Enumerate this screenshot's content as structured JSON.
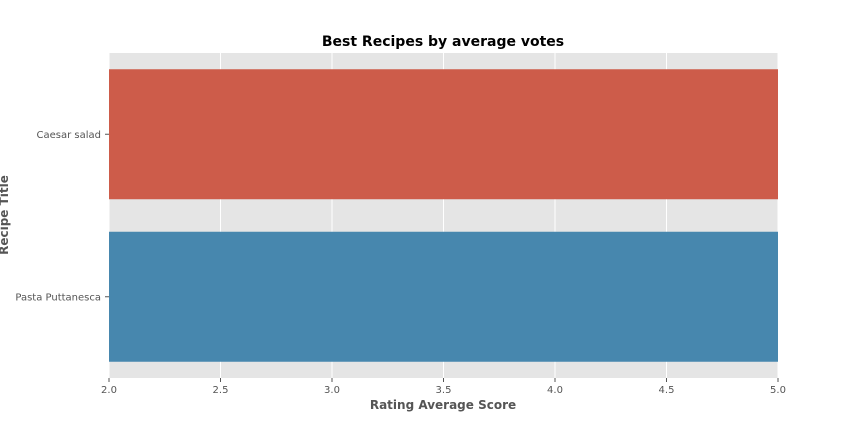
{
  "chart_data": {
    "type": "bar",
    "orientation": "horizontal",
    "title": "Best Recipes by average votes",
    "xlabel": "Rating Average Score",
    "ylabel": "Recipe Title",
    "categories": [
      "Caesar salad",
      "Pasta Puttanesca"
    ],
    "values": [
      5.0,
      5.0
    ],
    "xlim": [
      2.0,
      5.0
    ],
    "xticks": [
      "2.0",
      "2.5",
      "3.0",
      "3.5",
      "4.0",
      "4.5",
      "5.0"
    ],
    "grid": true,
    "legend": "none",
    "colors": {
      "bars": [
        "#CD5C4A",
        "#4787AE"
      ],
      "plot_background": "#E5E5E5",
      "grid": "#FFFFFF",
      "text": "#555555",
      "title": "#000000"
    }
  }
}
